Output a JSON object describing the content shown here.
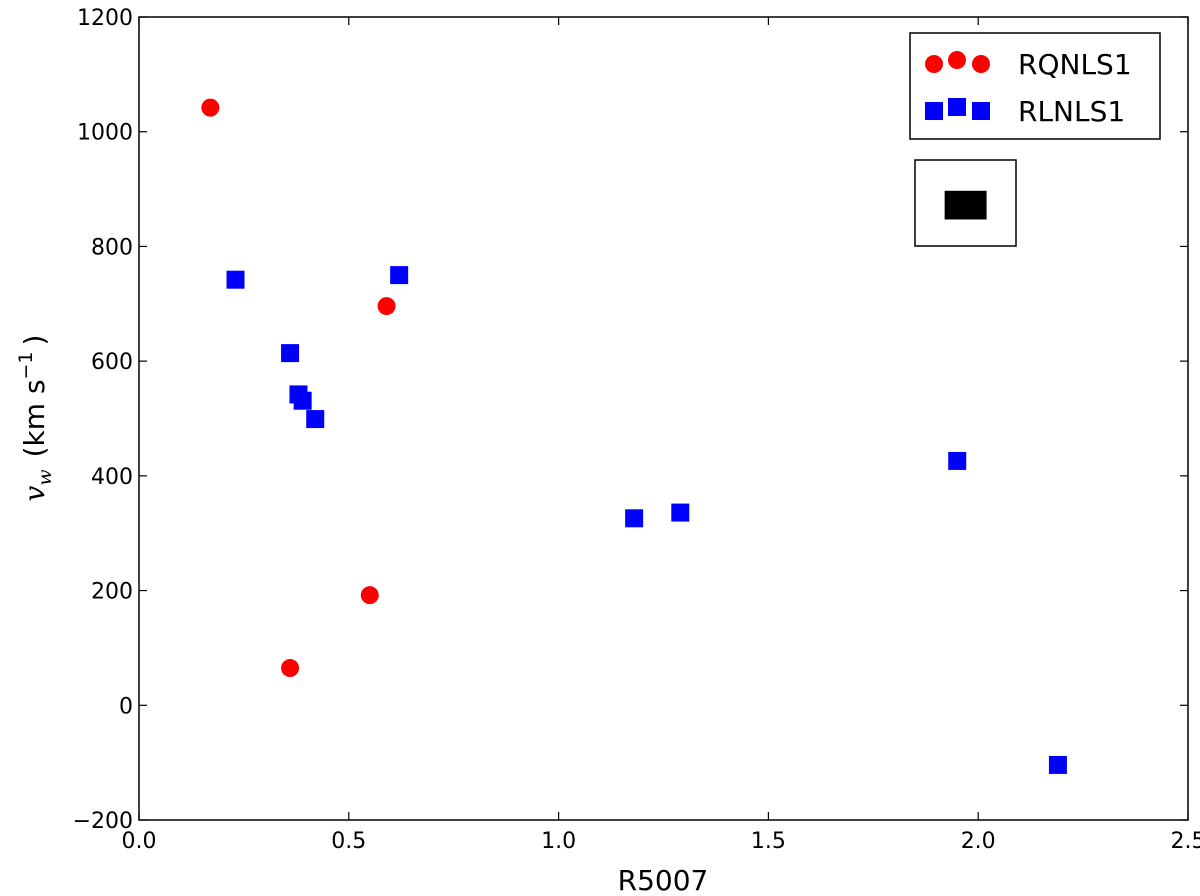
{
  "chart_data": {
    "type": "scatter",
    "xlabel": "R5007",
    "ylabel": {
      "var": "v",
      "sub": "w",
      "unit_open": "(km s",
      "sup": "−1",
      "unit_close": ")"
    },
    "xlim": [
      0.0,
      2.5
    ],
    "ylim": [
      -200,
      1200
    ],
    "xticks": [
      0.0,
      0.5,
      1.0,
      1.5,
      2.0,
      2.5
    ],
    "xtick_labels": [
      "0.0",
      "0.5",
      "1.0",
      "1.5",
      "2.0",
      "2.5"
    ],
    "yticks": [
      -200,
      0,
      200,
      400,
      600,
      800,
      1000,
      1200
    ],
    "ytick_labels": [
      "−200",
      "0",
      "200",
      "400",
      "600",
      "800",
      "1000",
      "1200"
    ],
    "grid": false,
    "legend_position": "top-right",
    "series": [
      {
        "name": "RQNLS1",
        "marker": "circle",
        "color": "#ff0000",
        "points": [
          {
            "x": 0.17,
            "y": 1042
          },
          {
            "x": 0.59,
            "y": 696
          },
          {
            "x": 0.55,
            "y": 192
          },
          {
            "x": 0.36,
            "y": 65
          }
        ]
      },
      {
        "name": "RLNLS1",
        "marker": "square",
        "color": "#0000ff",
        "points": [
          {
            "x": 0.23,
            "y": 742
          },
          {
            "x": 0.62,
            "y": 750
          },
          {
            "x": 0.36,
            "y": 614
          },
          {
            "x": 0.38,
            "y": 542
          },
          {
            "x": 0.39,
            "y": 531
          },
          {
            "x": 0.42,
            "y": 499
          },
          {
            "x": 1.18,
            "y": 326
          },
          {
            "x": 1.29,
            "y": 336
          },
          {
            "x": 1.95,
            "y": 426
          },
          {
            "x": 2.19,
            "y": -104
          }
        ]
      }
    ],
    "annotation": {
      "type": "error-box",
      "color": "#000000",
      "center": {
        "x": 1.97,
        "y": 872
      },
      "x_half_width": 0.05,
      "y_half_height": 25
    }
  }
}
